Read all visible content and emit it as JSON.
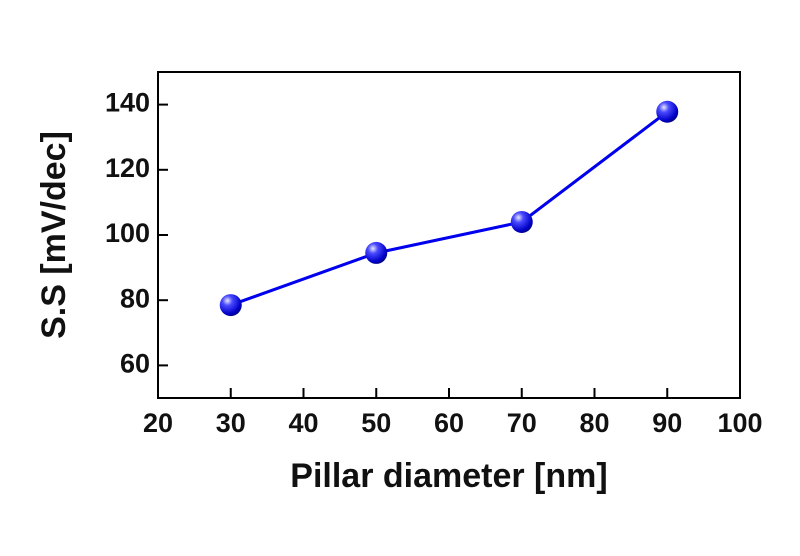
{
  "chart_data": {
    "type": "line",
    "x_label": "Pillar diameter [nm]",
    "y_label": "S.S [mV/dec]",
    "x": [
      30,
      50,
      70,
      90
    ],
    "series": [
      {
        "color": "#0000ee",
        "values": [
          78.5,
          94.5,
          104,
          137.8
        ]
      }
    ],
    "xlim": [
      20,
      100
    ],
    "xticks": [
      20,
      30,
      40,
      50,
      60,
      70,
      80,
      90,
      100
    ],
    "ylim": [
      50,
      150
    ],
    "yticks": [
      60,
      80,
      100,
      120,
      140
    ]
  }
}
